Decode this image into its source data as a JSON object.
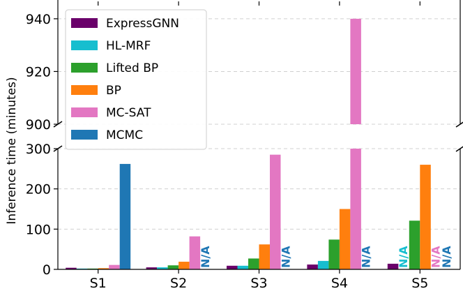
{
  "chart_data": {
    "type": "bar",
    "ylabel": "Inference time (minutes)",
    "categories": [
      "S1",
      "S2",
      "S3",
      "S4",
      "S5"
    ],
    "y_lower_range": [
      0,
      300
    ],
    "y_upper_range": [
      900,
      945
    ],
    "y_lower_ticks": [
      0,
      100,
      200,
      300
    ],
    "y_upper_ticks": [
      900,
      920,
      940
    ],
    "broken_axis": true,
    "grid": true,
    "legend_position": "top-left",
    "na_text": "N/A",
    "series": [
      {
        "name": "ExpressGNN",
        "color": "#6a006a",
        "values": [
          4,
          5,
          9,
          12,
          14
        ]
      },
      {
        "name": "HL-MRF",
        "color": "#17becf",
        "values": [
          2,
          5,
          9,
          21,
          null
        ]
      },
      {
        "name": "Lifted BP",
        "color": "#2ca02c",
        "values": [
          2,
          10,
          27,
          74,
          121
        ]
      },
      {
        "name": "BP",
        "color": "#ff7f0e",
        "values": [
          3,
          19,
          62,
          150,
          260
        ]
      },
      {
        "name": "MC-SAT",
        "color": "#e377c2",
        "values": [
          11,
          82,
          285,
          940,
          null
        ]
      },
      {
        "name": "MCMC",
        "color": "#1f77b4",
        "values": [
          262,
          null,
          null,
          null,
          null
        ]
      }
    ]
  }
}
